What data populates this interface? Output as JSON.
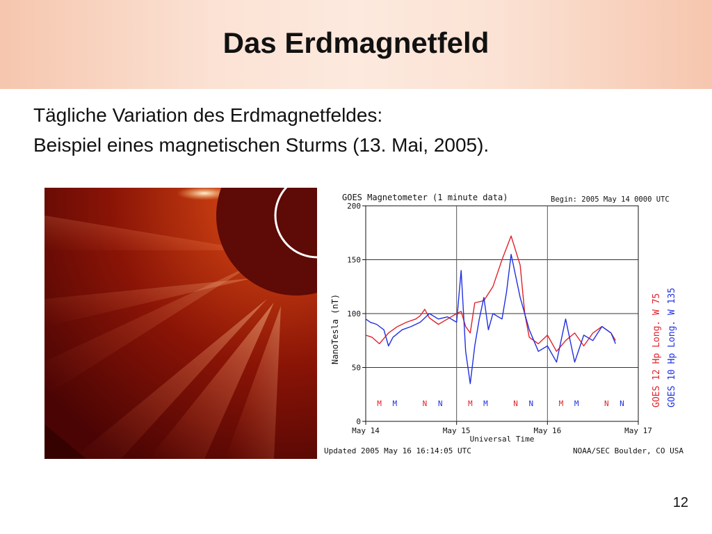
{
  "slide": {
    "title": "Das Erdmagnetfeld",
    "line1": "Tägliche Variation des Erdmagnetfeldes:",
    "line2": "Beispiel eines magnetischen Sturms (13. Mai, 2005).",
    "page_number": "12"
  },
  "colors": {
    "goes12": "#e0202a",
    "goes10": "#1f2fe0",
    "corona_dark": "#5a0606",
    "corona_bright": "#ffd3a0"
  },
  "chart_data": {
    "type": "line",
    "title": "GOES Magnetometer (1 minute data)",
    "begin_label": "Begin:  2005 May 14 0000 UTC",
    "ylabel": "NanoTesla (nT)",
    "xlabel": "Universal Time",
    "updated_label": "Updated 2005 May 16 16:14:05 UTC",
    "source_label": "NOAA/SEC Boulder, CO USA",
    "ylim": [
      0,
      200
    ],
    "xlim": [
      0,
      3
    ],
    "yticks": [
      0,
      50,
      100,
      150,
      200
    ],
    "x_tick_labels": [
      "May 14",
      "May 15",
      "May 16",
      "May 17"
    ],
    "grid": true,
    "series": [
      {
        "name": "GOES 12 Hp",
        "longitude": "Long. W 75",
        "color": "#e0202a",
        "x": [
          0.0,
          0.07,
          0.15,
          0.25,
          0.35,
          0.45,
          0.55,
          0.6,
          0.65,
          0.7,
          0.8,
          0.9,
          1.0,
          1.05,
          1.1,
          1.15,
          1.2,
          1.3,
          1.4,
          1.5,
          1.6,
          1.7,
          1.75,
          1.8,
          1.9,
          2.0,
          2.1,
          2.2,
          2.3,
          2.4,
          2.5,
          2.6,
          2.7,
          2.75
        ],
        "y": [
          80,
          78,
          72,
          82,
          88,
          92,
          95,
          98,
          104,
          96,
          90,
          95,
          100,
          102,
          88,
          82,
          110,
          112,
          125,
          150,
          172,
          145,
          100,
          78,
          72,
          80,
          65,
          75,
          82,
          70,
          82,
          88,
          82,
          75
        ]
      },
      {
        "name": "GOES 10 Hp",
        "longitude": "Long. W 135",
        "color": "#1f2fe0",
        "x": [
          0.0,
          0.05,
          0.12,
          0.2,
          0.25,
          0.3,
          0.4,
          0.5,
          0.6,
          0.7,
          0.8,
          0.9,
          1.0,
          1.05,
          1.1,
          1.15,
          1.2,
          1.25,
          1.3,
          1.35,
          1.4,
          1.5,
          1.55,
          1.6,
          1.7,
          1.8,
          1.9,
          2.0,
          2.1,
          2.2,
          2.3,
          2.4,
          2.5,
          2.6,
          2.7,
          2.75
        ],
        "y": [
          95,
          92,
          90,
          85,
          70,
          78,
          85,
          88,
          92,
          100,
          95,
          97,
          92,
          140,
          65,
          35,
          70,
          95,
          115,
          85,
          100,
          95,
          120,
          155,
          115,
          85,
          65,
          70,
          55,
          95,
          55,
          80,
          75,
          88,
          82,
          72
        ]
      }
    ],
    "markers": [
      {
        "label": "M",
        "x": 0.15,
        "series": "GOES 12 Hp"
      },
      {
        "label": "M",
        "x": 0.32,
        "series": "GOES 10 Hp"
      },
      {
        "label": "N",
        "x": 0.65,
        "series": "GOES 12 Hp"
      },
      {
        "label": "N",
        "x": 0.82,
        "series": "GOES 10 Hp"
      },
      {
        "label": "M",
        "x": 1.15,
        "series": "GOES 12 Hp"
      },
      {
        "label": "M",
        "x": 1.32,
        "series": "GOES 10 Hp"
      },
      {
        "label": "N",
        "x": 1.65,
        "series": "GOES 12 Hp"
      },
      {
        "label": "N",
        "x": 1.82,
        "series": "GOES 10 Hp"
      },
      {
        "label": "M",
        "x": 2.15,
        "series": "GOES 12 Hp"
      },
      {
        "label": "M",
        "x": 2.32,
        "series": "GOES 10 Hp"
      },
      {
        "label": "N",
        "x": 2.65,
        "series": "GOES 12 Hp"
      },
      {
        "label": "N",
        "x": 2.82,
        "series": "GOES 10 Hp"
      }
    ]
  }
}
